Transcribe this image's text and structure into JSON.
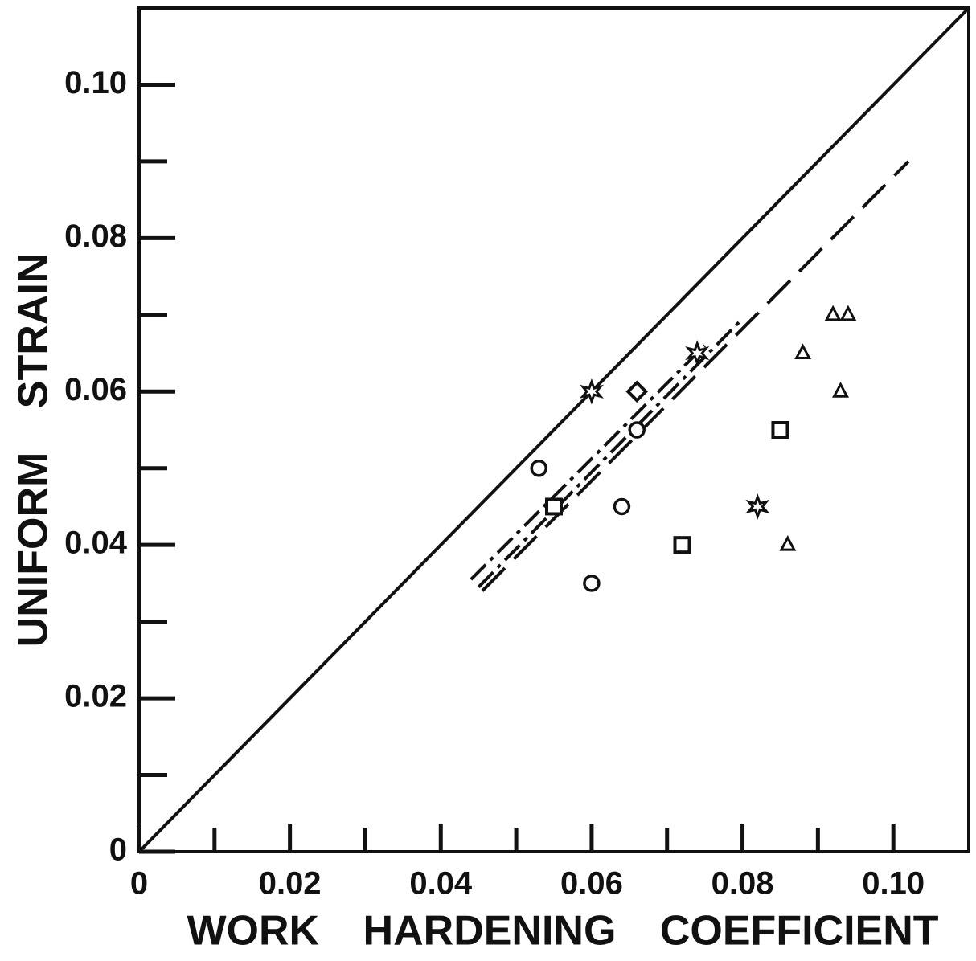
{
  "chart_data": {
    "type": "scatter",
    "xlabel": "WORK HARDENING COEFFICIENT",
    "ylabel": "UNIFORM STRAIN",
    "xlim": [
      0,
      0.11
    ],
    "ylim": [
      0,
      0.11
    ],
    "xticks": [
      0,
      0.02,
      0.04,
      0.06,
      0.08,
      {
        "value": 0.1,
        "label": "0.10"
      }
    ],
    "yticks": [
      0,
      0.02,
      0.04,
      0.06,
      0.08,
      {
        "value": 0.1,
        "label": "0.10"
      }
    ],
    "xminor": [
      0.01,
      0.03,
      0.05,
      0.07,
      0.09
    ],
    "yminor": [
      0.01,
      0.03,
      0.05,
      0.07,
      0.09
    ],
    "lines": [
      {
        "style": "solid",
        "x": [
          0,
          0.11
        ],
        "y": [
          0,
          0.11
        ]
      },
      {
        "style": "dashdot",
        "x": [
          0.044,
          0.075
        ],
        "y": [
          0.0355,
          0.066
        ]
      },
      {
        "style": "dashdot",
        "x": [
          0.045,
          0.08
        ],
        "y": [
          0.0345,
          0.0695
        ]
      },
      {
        "style": "dash",
        "x": [
          0.0455,
          0.102
        ],
        "y": [
          0.034,
          0.09
        ]
      }
    ],
    "series": [
      {
        "marker": "circle",
        "color": "#111",
        "x": [
          0.053,
          0.066,
          0.064,
          0.06
        ],
        "y": [
          0.05,
          0.055,
          0.045,
          0.035
        ]
      },
      {
        "marker": "square",
        "color": "#111",
        "x": [
          0.055,
          0.072,
          0.085
        ],
        "y": [
          0.045,
          0.04,
          0.055
        ]
      },
      {
        "marker": "diamond",
        "color": "#111",
        "x": [
          0.066
        ],
        "y": [
          0.06
        ]
      },
      {
        "marker": "star",
        "color": "#111",
        "x": [
          0.06,
          0.074,
          0.082
        ],
        "y": [
          0.06,
          0.065,
          0.045
        ]
      },
      {
        "marker": "triangle",
        "color": "#111",
        "x": [
          0.092,
          0.094,
          0.088,
          0.093,
          0.086
        ],
        "y": [
          0.07,
          0.07,
          0.065,
          0.06,
          0.04
        ]
      }
    ]
  }
}
